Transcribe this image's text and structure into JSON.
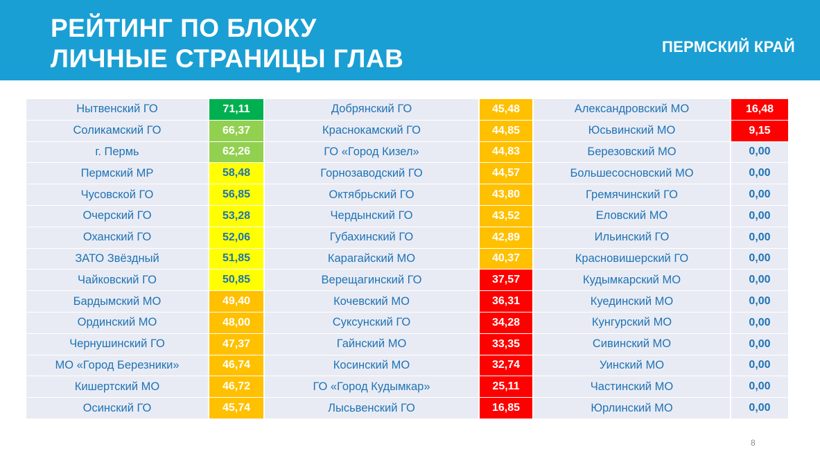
{
  "header": {
    "title_line1": "РЕЙТИНГ ПО БЛОКУ",
    "title_line2": "ЛИЧНЫЕ СТРАНИЦЫ ГЛАВ",
    "region": "ПЕРМСКИЙ КРАЙ"
  },
  "colors": {
    "header_bg": "#1a9fd4",
    "dark_green": "#00b050",
    "light_green": "#92d050",
    "yellow": "#ffff00",
    "orange": "#ffc000",
    "red": "#ff0000",
    "cell_bg": "#e9ebf4",
    "name_text": "#1e73b5"
  },
  "rows": [
    {
      "c1_name": "Нытвенский ГО",
      "c1_value": "71,11",
      "c1_color": "dark_green",
      "c2_name": "Добрянский ГО",
      "c2_value": "45,48",
      "c2_color": "orange",
      "c3_name": "Александровский МО",
      "c3_value": "16,48",
      "c3_color": "red"
    },
    {
      "c1_name": "Соликамский ГО",
      "c1_value": "66,37",
      "c1_color": "light_green",
      "c2_name": "Краснокамский ГО",
      "c2_value": "44,85",
      "c2_color": "orange",
      "c3_name": "Юсьвинский МО",
      "c3_value": "9,15",
      "c3_color": "red"
    },
    {
      "c1_name": "г. Пермь",
      "c1_value": "62,26",
      "c1_color": "light_green",
      "c2_name": "ГО «Город Кизел»",
      "c2_value": "44,83",
      "c2_color": "orange",
      "c3_name": "Березовский МО",
      "c3_value": "0,00",
      "c3_color": "none"
    },
    {
      "c1_name": "Пермский МР",
      "c1_value": "58,48",
      "c1_color": "yellow",
      "c2_name": "Горнозаводский ГО",
      "c2_value": "44,57",
      "c2_color": "orange",
      "c3_name": "Большесосновский МО",
      "c3_value": "0,00",
      "c3_color": "none"
    },
    {
      "c1_name": "Чусовской ГО",
      "c1_value": "56,85",
      "c1_color": "yellow",
      "c2_name": "Октябрьский ГО",
      "c2_value": "43,80",
      "c2_color": "orange",
      "c3_name": "Гремячинский ГО",
      "c3_value": "0,00",
      "c3_color": "none"
    },
    {
      "c1_name": "Очерский ГО",
      "c1_value": "53,28",
      "c1_color": "yellow",
      "c2_name": "Чердынский ГО",
      "c2_value": "43,52",
      "c2_color": "orange",
      "c3_name": "Еловский МО",
      "c3_value": "0,00",
      "c3_color": "none"
    },
    {
      "c1_name": "Оханский ГО",
      "c1_value": "52,06",
      "c1_color": "yellow",
      "c2_name": "Губахинский ГО",
      "c2_value": "42,89",
      "c2_color": "orange",
      "c3_name": "Ильинский ГО",
      "c3_value": "0,00",
      "c3_color": "none"
    },
    {
      "c1_name": "ЗАТО Звёздный",
      "c1_value": "51,85",
      "c1_color": "yellow",
      "c2_name": "Карагайский МО",
      "c2_value": "40,37",
      "c2_color": "orange",
      "c3_name": "Красновишерский ГО",
      "c3_value": "0,00",
      "c3_color": "none"
    },
    {
      "c1_name": "Чайковский ГО",
      "c1_value": "50,85",
      "c1_color": "yellow",
      "c2_name": "Верещагинский ГО",
      "c2_value": "37,57",
      "c2_color": "red",
      "c3_name": "Кудымкарский МО",
      "c3_value": "0,00",
      "c3_color": "none"
    },
    {
      "c1_name": "Бардымский МО",
      "c1_value": "49,40",
      "c1_color": "orange",
      "c2_name": "Кочевский МО",
      "c2_value": "36,31",
      "c2_color": "red",
      "c3_name": "Куединский МО",
      "c3_value": "0,00",
      "c3_color": "none"
    },
    {
      "c1_name": "Ординский МО",
      "c1_value": "48,00",
      "c1_color": "orange",
      "c2_name": "Суксунский ГО",
      "c2_value": "34,28",
      "c2_color": "red",
      "c3_name": "Кунгурский МО",
      "c3_value": "0,00",
      "c3_color": "none"
    },
    {
      "c1_name": "Чернушинский ГО",
      "c1_value": "47,37",
      "c1_color": "orange",
      "c2_name": "Гайнский МО",
      "c2_value": "33,35",
      "c2_color": "red",
      "c3_name": "Сивинский МО",
      "c3_value": "0,00",
      "c3_color": "none"
    },
    {
      "c1_name": "МО «Город Березники»",
      "c1_value": "46,74",
      "c1_color": "orange",
      "c2_name": "Косинский МО",
      "c2_value": "32,74",
      "c2_color": "red",
      "c3_name": "Уинский МО",
      "c3_value": "0,00",
      "c3_color": "none"
    },
    {
      "c1_name": "Кишертский МО",
      "c1_value": "46,72",
      "c1_color": "orange",
      "c2_name": "ГО «Город Кудымкар»",
      "c2_value": "25,11",
      "c2_color": "red",
      "c3_name": "Частинский МО",
      "c3_value": "0,00",
      "c3_color": "none"
    },
    {
      "c1_name": "Осинский ГО",
      "c1_value": "45,74",
      "c1_color": "orange",
      "c2_name": "Лысьвенский ГО",
      "c2_value": "16,85",
      "c2_color": "red",
      "c3_name": "Юрлинский МО",
      "c3_value": "0,00",
      "c3_color": "none"
    }
  ],
  "page_number": "8"
}
